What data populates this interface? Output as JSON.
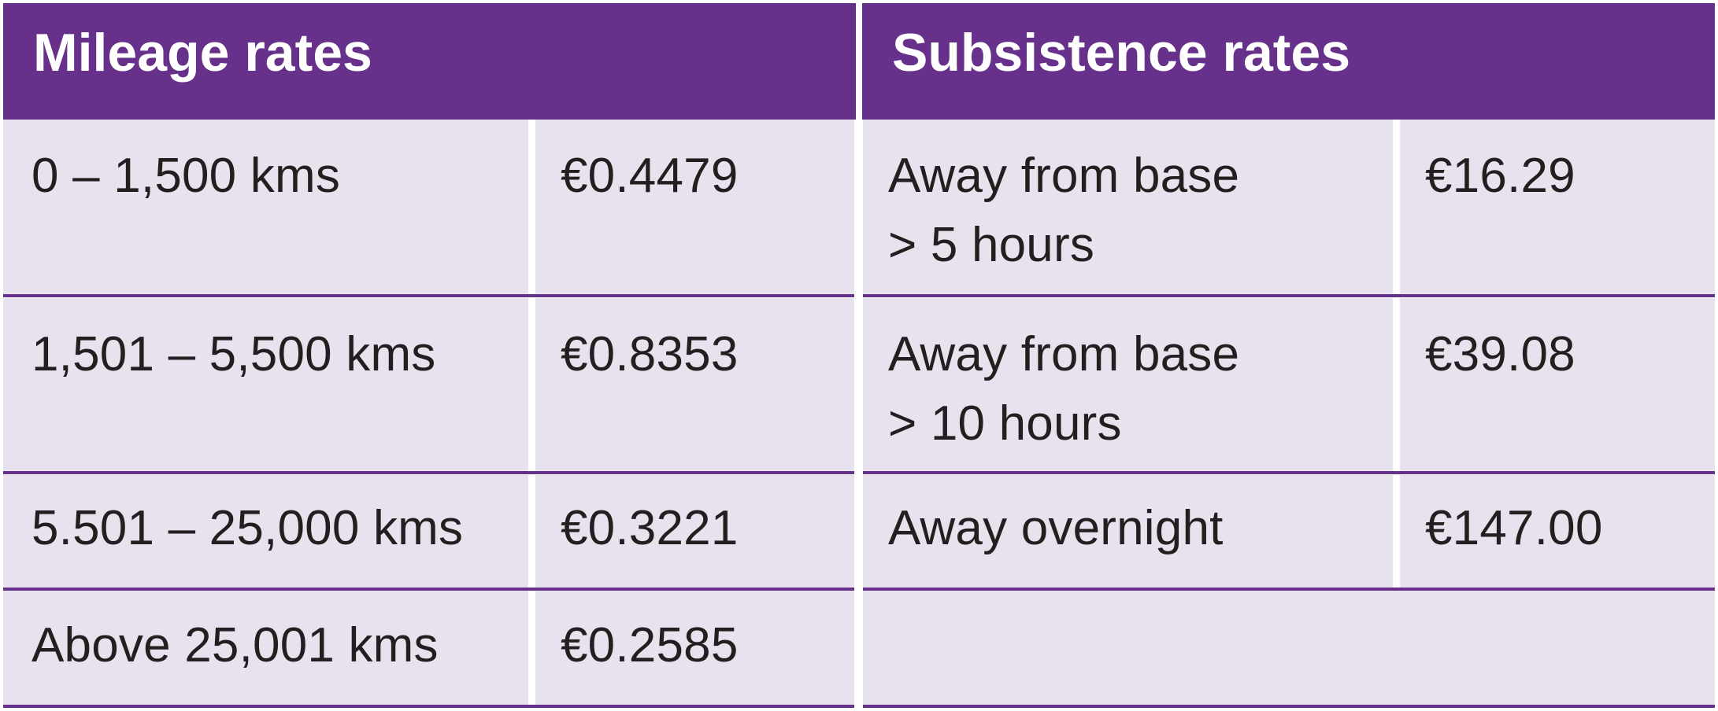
{
  "colors": {
    "header_bg": "#66308b",
    "cell_bg": "#e8e2ee",
    "rule": "#66308b",
    "text": "#231f20"
  },
  "mileage": {
    "title": "Mileage rates",
    "rows": [
      {
        "range": "0 – 1,500 kms",
        "rate": "€0.4479"
      },
      {
        "range": "1,501 – 5,500 kms",
        "rate": "€0.8353"
      },
      {
        "range": "5.501 – 25,000 kms",
        "rate": "€0.3221"
      },
      {
        "range": "Above 25,001 kms",
        "rate": "€0.2585"
      }
    ]
  },
  "subsistence": {
    "title": "Subsistence rates",
    "rows": [
      {
        "condition": "Away from base\n> 5 hours",
        "rate": "€16.29"
      },
      {
        "condition": "Away from base\n> 10 hours",
        "rate": "€39.08"
      },
      {
        "condition": "Away overnight",
        "rate": "€147.00"
      }
    ]
  }
}
